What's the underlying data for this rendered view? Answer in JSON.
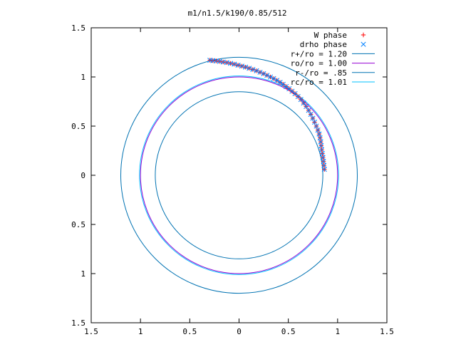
{
  "chart_data": {
    "type": "scatter",
    "title": "m1/n1.5/k190/0.85/512",
    "xlabel": "",
    "ylabel": "",
    "xlim": [
      -1.5,
      1.5
    ],
    "ylim": [
      -1.5,
      1.5
    ],
    "xticks": [
      -1.5,
      -1,
      -0.5,
      0,
      0.5,
      1,
      1.5
    ],
    "yticks": [
      -1.5,
      -1,
      -0.5,
      0,
      0.5,
      1,
      1.5
    ],
    "xtick_labels": [
      "1.5",
      "1",
      "0.5",
      "0",
      "0.5",
      "1",
      "1.5"
    ],
    "ytick_labels": [
      "1.5",
      "1",
      "0.5",
      "0",
      "0.5",
      "1",
      "1.5"
    ],
    "grid": false,
    "legend_position": "top-right",
    "series": [
      {
        "name": "W phase",
        "kind": "points-plus",
        "color": "#ff0000",
        "x": [
          0.866,
          0.862,
          0.857,
          0.851,
          0.845,
          0.839,
          0.834,
          0.829,
          0.822,
          0.813,
          0.8,
          0.784,
          0.766,
          0.748,
          0.728,
          0.706,
          0.681,
          0.655,
          0.627,
          0.598,
          0.568,
          0.538,
          0.508,
          0.478,
          0.447,
          0.416,
          0.384,
          0.351,
          0.318,
          0.284,
          0.249,
          0.213,
          0.177,
          0.14,
          0.103,
          0.066,
          0.028,
          -0.01,
          -0.048,
          -0.086,
          -0.124,
          -0.161,
          -0.197,
          -0.232,
          -0.265,
          -0.295
        ],
        "y": [
          0.06,
          0.1,
          0.14,
          0.18,
          0.22,
          0.26,
          0.3,
          0.34,
          0.38,
          0.42,
          0.46,
          0.5,
          0.54,
          0.58,
          0.62,
          0.66,
          0.7,
          0.735,
          0.77,
          0.8,
          0.83,
          0.855,
          0.88,
          0.902,
          0.925,
          0.945,
          0.965,
          0.983,
          1.0,
          1.017,
          1.033,
          1.048,
          1.063,
          1.076,
          1.088,
          1.1,
          1.11,
          1.12,
          1.13,
          1.138,
          1.146,
          1.152,
          1.158,
          1.163,
          1.166,
          1.17
        ]
      },
      {
        "name": "drho phase",
        "kind": "points-cross",
        "color": "#0080ff",
        "x": [
          0.866,
          0.862,
          0.857,
          0.851,
          0.845,
          0.839,
          0.834,
          0.829,
          0.822,
          0.813,
          0.8,
          0.784,
          0.766,
          0.748,
          0.728,
          0.706,
          0.681,
          0.655,
          0.627,
          0.598,
          0.568,
          0.538,
          0.508,
          0.478,
          0.447,
          0.416,
          0.384,
          0.351,
          0.318,
          0.284,
          0.249,
          0.213,
          0.177,
          0.14,
          0.103,
          0.066,
          0.028,
          -0.01,
          -0.048,
          -0.086,
          -0.124,
          -0.161,
          -0.197,
          -0.232,
          -0.265,
          -0.295
        ],
        "y": [
          0.06,
          0.1,
          0.14,
          0.18,
          0.22,
          0.26,
          0.3,
          0.34,
          0.38,
          0.42,
          0.46,
          0.5,
          0.54,
          0.58,
          0.62,
          0.66,
          0.7,
          0.735,
          0.77,
          0.8,
          0.83,
          0.855,
          0.88,
          0.902,
          0.925,
          0.945,
          0.965,
          0.983,
          1.0,
          1.017,
          1.033,
          1.048,
          1.063,
          1.076,
          1.088,
          1.1,
          1.11,
          1.12,
          1.13,
          1.138,
          1.146,
          1.152,
          1.158,
          1.163,
          1.166,
          1.17
        ]
      },
      {
        "name": "r+/ro = 1.20",
        "kind": "circle",
        "radius": 1.2,
        "color": "#0072b2"
      },
      {
        "name": "ro/ro = 1.00",
        "kind": "circle",
        "radius": 1.0,
        "color": "#9400d3"
      },
      {
        "name": "r-/ro = .85",
        "kind": "circle",
        "radius": 0.85,
        "color": "#0072b2"
      },
      {
        "name": "rc/ro = 1.01",
        "kind": "circle",
        "radius": 1.01,
        "color": "#00c0ff"
      }
    ]
  }
}
